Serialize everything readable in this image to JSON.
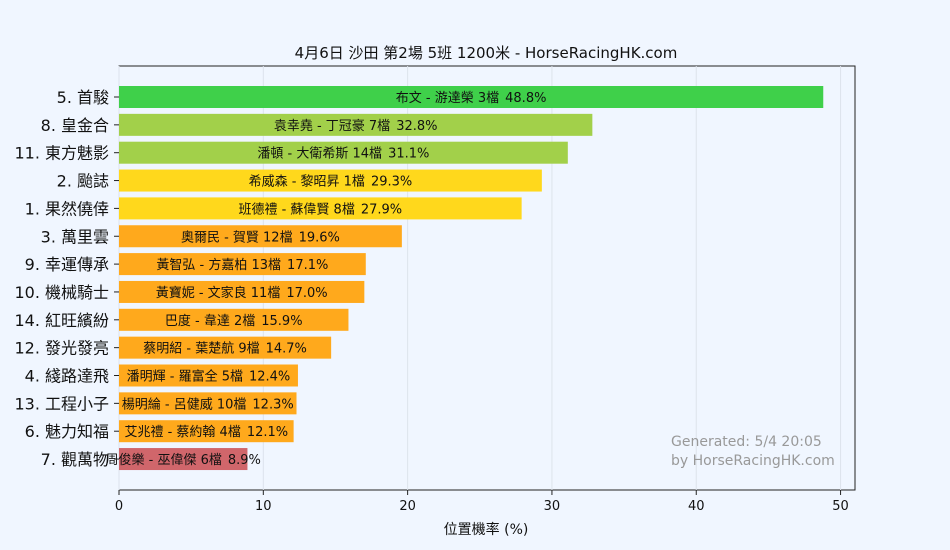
{
  "chart_data": {
    "type": "bar",
    "orientation": "horizontal",
    "title": "4月6日  沙田  第2場  5班  1200米 - HorseRacingHK.com",
    "xlabel": "位置機率 (%)",
    "ylabel": "",
    "xlim": [
      0,
      51
    ],
    "xticks": [
      0,
      10,
      20,
      30,
      40,
      50
    ],
    "grid": true,
    "colors": {
      "green": "#3fd04a",
      "yellowgreen": "#a2d04a",
      "gold": "#ffd81c",
      "orange": "#ffa91c",
      "red": "#d0666b",
      "background": "#f0f6ff",
      "grid": "#dde3ec"
    },
    "bars": [
      {
        "horse": "5. 首駿",
        "detail": "布文 - 游達榮 3檔",
        "value": 48.8,
        "value_label": "48.8%",
        "color": "green"
      },
      {
        "horse": "8. 皇金合",
        "detail": "袁幸堯 - 丁冠豪 7檔",
        "value": 32.8,
        "value_label": "32.8%",
        "color": "yellowgreen"
      },
      {
        "horse": "11. 東方魅影",
        "detail": "潘頓 - 大衛希斯 14檔",
        "value": 31.1,
        "value_label": "31.1%",
        "color": "yellowgreen"
      },
      {
        "horse": "2. 颱誌",
        "detail": "希威森 - 黎昭昇 1檔",
        "value": 29.3,
        "value_label": "29.3%",
        "color": "gold"
      },
      {
        "horse": "1. 果然僥倖",
        "detail": "班德禮 - 蘇偉賢 8檔",
        "value": 27.9,
        "value_label": "27.9%",
        "color": "gold"
      },
      {
        "horse": "3. 萬里雲",
        "detail": "奧爾民 - 賀賢 12檔",
        "value": 19.6,
        "value_label": "19.6%",
        "color": "orange"
      },
      {
        "horse": "9. 幸運傳承",
        "detail": "黃智弘 - 方嘉柏 13檔",
        "value": 17.1,
        "value_label": "17.1%",
        "color": "orange"
      },
      {
        "horse": "10. 機械騎士",
        "detail": "黃寶妮 - 文家良 11檔",
        "value": 17.0,
        "value_label": "17.0%",
        "color": "orange"
      },
      {
        "horse": "14. 紅旺繽紛",
        "detail": "巴度 - 韋達 2檔",
        "value": 15.9,
        "value_label": "15.9%",
        "color": "orange"
      },
      {
        "horse": "12. 發光發亮",
        "detail": "蔡明紹 - 葉楚航 9檔",
        "value": 14.7,
        "value_label": "14.7%",
        "color": "orange"
      },
      {
        "horse": "4. 綫路達飛",
        "detail": "潘明輝 - 羅富全 5檔",
        "value": 12.4,
        "value_label": "12.4%",
        "color": "orange"
      },
      {
        "horse": "13. 工程小子",
        "detail": "楊明綸 - 呂健威 10檔",
        "value": 12.3,
        "value_label": "12.3%",
        "color": "orange"
      },
      {
        "horse": "6. 魅力知福",
        "detail": "艾兆禮 - 蔡約翰 4檔",
        "value": 12.1,
        "value_label": "12.1%",
        "color": "orange"
      },
      {
        "horse": "7. 觀萬物",
        "detail": "周俊樂 - 巫偉傑 6檔",
        "value": 8.9,
        "value_label": "8.9%",
        "color": "red"
      }
    ],
    "annotation": {
      "line1": "Generated: 5/4 20:05",
      "line2": "by HorseRacingHK.com"
    }
  }
}
